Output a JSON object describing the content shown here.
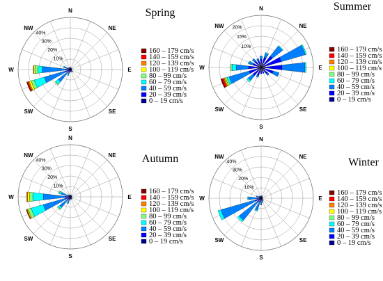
{
  "chart_data": [
    {
      "type": "wind-rose",
      "title": "Spring",
      "directions": [
        "N",
        "NE",
        "E",
        "SE",
        "S",
        "SW",
        "W",
        "NW"
      ],
      "ring_labels": [
        "10%",
        "20%",
        "30%",
        "40%"
      ],
      "rmax": 50,
      "grid": true,
      "legend": "right",
      "bins": [
        "0 – 19 cm/s",
        "20 – 39 cm/s",
        "40 – 59 cm/s",
        "60 – 79 cm/s",
        "80 – 99 cm/s",
        "100 – 119 cm/s",
        "120 – 139 cm/s",
        "140 – 159 cm/s",
        "160 – 179 cm/s"
      ],
      "bin_colors": [
        "#00008f",
        "#0000ff",
        "#0080ff",
        "#00ffff",
        "#80ff80",
        "#ffff00",
        "#ff8000",
        "#ff0000",
        "#800000"
      ],
      "sector_angles": [
        0,
        22.5,
        45,
        67.5,
        90,
        112.5,
        135,
        157.5,
        180,
        202.5,
        225,
        247.5,
        270,
        292.5,
        315,
        337.5
      ],
      "sectors": [
        [
          1,
          1,
          0.5,
          0,
          0,
          0,
          0,
          0,
          0
        ],
        [
          1,
          0.5,
          0,
          0,
          0,
          0,
          0,
          0,
          0
        ],
        [
          1,
          1,
          0,
          0,
          0,
          0,
          0,
          0,
          0
        ],
        [
          1,
          0.5,
          0,
          0,
          0,
          0,
          0,
          0,
          0
        ],
        [
          1,
          0.5,
          0,
          0,
          0,
          0,
          0,
          0,
          0
        ],
        [
          1,
          0.5,
          0,
          0,
          0,
          0,
          0,
          0,
          0
        ],
        [
          1,
          1,
          1,
          0.3,
          0,
          0,
          0,
          0,
          0
        ],
        [
          1,
          1,
          0.5,
          0,
          0,
          0,
          0,
          0,
          0
        ],
        [
          1,
          1,
          0,
          0,
          0,
          0,
          0,
          0,
          0
        ],
        [
          1,
          2,
          2,
          1,
          0,
          0,
          0,
          0,
          0
        ],
        [
          1,
          3,
          11,
          3,
          1,
          0,
          0,
          0,
          0
        ],
        [
          1,
          4,
          21,
          10,
          3,
          2,
          1,
          1,
          0.5
        ],
        [
          1,
          4,
          22,
          4,
          3,
          1,
          0.5,
          0,
          0
        ],
        [
          1,
          2,
          3,
          1,
          0,
          0,
          0,
          0,
          0
        ],
        [
          1,
          1,
          0.5,
          0,
          0,
          0,
          0,
          0,
          0
        ],
        [
          1,
          1,
          0,
          0,
          0,
          0,
          0,
          0,
          0
        ]
      ]
    },
    {
      "type": "wind-rose",
      "title": "Summer",
      "directions": [
        "N",
        "NE",
        "E",
        "SE",
        "S",
        "SW",
        "W",
        "NW"
      ],
      "ring_labels": [
        "10%",
        "15%",
        "20%"
      ],
      "rmax": 25,
      "grid": true,
      "legend": "right",
      "bins": [
        "0 – 19 cm/s",
        "20 – 39 cm/s",
        "40 – 59 cm/s",
        "60 – 79 cm/s",
        "80 – 99 cm/s",
        "100 – 119 cm/s",
        "120 – 139 cm/s",
        "140 – 159 cm/s",
        "160 – 179 cm/s"
      ],
      "bin_colors": [
        "#00008f",
        "#0000ff",
        "#0080ff",
        "#00ffff",
        "#80ff80",
        "#ffff00",
        "#ff8000",
        "#ff0000",
        "#800000"
      ],
      "sector_angles": [
        0,
        22.5,
        45,
        67.5,
        90,
        112.5,
        135,
        157.5,
        180,
        202.5,
        225,
        247.5,
        270,
        292.5,
        315,
        337.5
      ],
      "sectors": [
        [
          2,
          2,
          1.5,
          0,
          0,
          0,
          0,
          0,
          0
        ],
        [
          2,
          3,
          2,
          0.5,
          0,
          0,
          0,
          0,
          0
        ],
        [
          2,
          5,
          6,
          0.5,
          0,
          0,
          0,
          0,
          0
        ],
        [
          2,
          8,
          12,
          0.6,
          0,
          0,
          0,
          0,
          0
        ],
        [
          2,
          8,
          11,
          0.6,
          0,
          0,
          0,
          0,
          0
        ],
        [
          2,
          4,
          3,
          0,
          0,
          0,
          0,
          0,
          0
        ],
        [
          2,
          2,
          1,
          0,
          0,
          0,
          0,
          0,
          0
        ],
        [
          2,
          1,
          0,
          0,
          0,
          0,
          0,
          0,
          0
        ],
        [
          2,
          1,
          0,
          0,
          0,
          0,
          0,
          0,
          0
        ],
        [
          2,
          2,
          1,
          0,
          0,
          0,
          0,
          0,
          0
        ],
        [
          2,
          3,
          3,
          1,
          0,
          0,
          0,
          0,
          0
        ],
        [
          2,
          4,
          10,
          1,
          0.8,
          0.5,
          0.5,
          0.8,
          0.5
        ],
        [
          2,
          4,
          6,
          2,
          0.6,
          0,
          0,
          0,
          0
        ],
        [
          2,
          2,
          2,
          0.5,
          0,
          0,
          0,
          0,
          0
        ],
        [
          2,
          2,
          1.5,
          0,
          0,
          0,
          0,
          0,
          0
        ],
        [
          2,
          1.5,
          1,
          0,
          0,
          0,
          0,
          0,
          0
        ]
      ]
    },
    {
      "type": "wind-rose",
      "title": "Autumn",
      "directions": [
        "N",
        "NE",
        "E",
        "SE",
        "S",
        "SW",
        "W",
        "NW"
      ],
      "ring_labels": [
        "10%",
        "20%",
        "30%",
        "40%"
      ],
      "rmax": 50,
      "grid": true,
      "legend": "right",
      "bins": [
        "0 – 19 cm/s",
        "20 – 39 cm/s",
        "40 – 59 cm/s",
        "60 – 79 cm/s",
        "80 – 99 cm/s",
        "100 – 119 cm/s",
        "120 – 139 cm/s",
        "140 – 159 cm/s",
        "160 – 179 cm/s"
      ],
      "bin_colors": [
        "#00008f",
        "#0000ff",
        "#0080ff",
        "#00ffff",
        "#80ff80",
        "#ffff00",
        "#ff8000",
        "#ff0000",
        "#800000"
      ],
      "sector_angles": [
        0,
        22.5,
        45,
        67.5,
        90,
        112.5,
        135,
        157.5,
        180,
        202.5,
        225,
        247.5,
        270,
        292.5,
        315,
        337.5
      ],
      "sectors": [
        [
          1,
          1,
          0,
          0,
          0,
          0,
          0,
          0,
          0
        ],
        [
          1,
          0.5,
          0,
          0,
          0,
          0,
          0,
          0,
          0
        ],
        [
          1,
          1,
          0,
          0,
          0,
          0,
          0,
          0,
          0
        ],
        [
          1,
          0.5,
          0,
          0,
          0,
          0,
          0,
          0,
          0
        ],
        [
          1,
          0.5,
          0,
          0,
          0,
          0,
          0,
          0,
          0
        ],
        [
          1,
          0.5,
          0,
          0,
          0,
          0,
          0,
          0,
          0
        ],
        [
          1,
          1,
          0.5,
          0,
          0,
          0,
          0,
          0,
          0
        ],
        [
          1,
          1,
          0.5,
          0,
          0,
          0,
          0,
          0,
          0
        ],
        [
          1,
          1,
          1,
          0,
          0,
          0,
          0,
          0,
          0
        ],
        [
          1,
          2,
          3,
          1,
          0,
          0,
          0,
          0,
          0
        ],
        [
          1,
          3,
          9,
          2,
          1,
          0,
          0,
          0,
          0
        ],
        [
          1,
          4,
          22,
          12,
          3,
          1,
          0.5,
          0.5,
          0
        ],
        [
          1,
          4,
          21,
          10,
          3,
          2,
          1,
          0,
          0
        ],
        [
          1,
          2,
          6,
          2,
          1,
          0,
          0,
          0,
          0
        ],
        [
          1,
          1,
          1,
          0,
          0,
          0,
          0,
          0,
          0
        ],
        [
          1,
          1,
          0,
          0,
          0,
          0,
          0,
          0,
          0
        ]
      ]
    },
    {
      "type": "wind-rose",
      "title": "Winter",
      "directions": [
        "N",
        "NE",
        "E",
        "SE",
        "S",
        "SW",
        "W",
        "NW"
      ],
      "ring_labels": [
        "10%",
        "20%",
        "30%",
        "40%"
      ],
      "rmax": 50,
      "grid": true,
      "legend": "right",
      "bins": [
        "0 – 19 cm/s",
        "20 – 39 cm/s",
        "40 – 59 cm/s",
        "60 – 79 cm/s",
        "80 – 99 cm/s",
        "100 – 119 cm/s",
        "120 – 139 cm/s",
        "140 – 159 cm/s",
        "160 – 179 cm/s"
      ],
      "bin_colors": [
        "#00008f",
        "#0000ff",
        "#0080ff",
        "#00ffff",
        "#80ff80",
        "#ffff00",
        "#ff8000",
        "#ff0000",
        "#800000"
      ],
      "sector_angles": [
        0,
        22.5,
        45,
        67.5,
        90,
        112.5,
        135,
        157.5,
        180,
        202.5,
        225,
        247.5,
        270,
        292.5,
        315,
        337.5
      ],
      "sectors": [
        [
          1,
          1,
          0.5,
          0,
          0,
          0,
          0,
          0,
          0
        ],
        [
          1,
          1,
          0.5,
          0,
          0,
          0,
          0,
          0,
          0
        ],
        [
          1,
          1,
          0,
          0,
          0,
          0,
          0,
          0,
          0
        ],
        [
          1,
          0.5,
          0,
          0,
          0,
          0,
          0,
          0,
          0
        ],
        [
          1,
          0.5,
          0,
          0,
          0,
          0,
          0,
          0,
          0
        ],
        [
          1,
          0.5,
          0,
          0,
          0,
          0,
          0,
          0,
          0
        ],
        [
          1,
          1,
          1,
          0,
          0,
          0,
          0,
          0,
          0
        ],
        [
          1,
          1,
          2,
          0.5,
          0,
          0,
          0,
          0,
          0
        ],
        [
          1,
          2,
          3,
          0.5,
          0,
          0,
          0,
          0,
          0
        ],
        [
          1,
          3,
          8,
          1,
          0,
          0,
          0,
          0,
          0
        ],
        [
          1,
          4,
          22,
          2,
          0,
          0,
          0,
          0,
          0
        ],
        [
          1,
          5,
          34,
          3,
          0,
          0,
          0,
          0,
          0
        ],
        [
          1,
          3,
          8,
          1,
          0,
          0,
          0,
          0,
          0
        ],
        [
          1,
          2,
          2,
          0,
          0,
          0,
          0,
          0,
          0
        ],
        [
          1,
          1,
          1,
          0,
          0,
          0,
          0,
          0,
          0
        ],
        [
          1,
          1,
          0,
          0,
          0,
          0,
          0,
          0,
          0
        ]
      ]
    }
  ]
}
